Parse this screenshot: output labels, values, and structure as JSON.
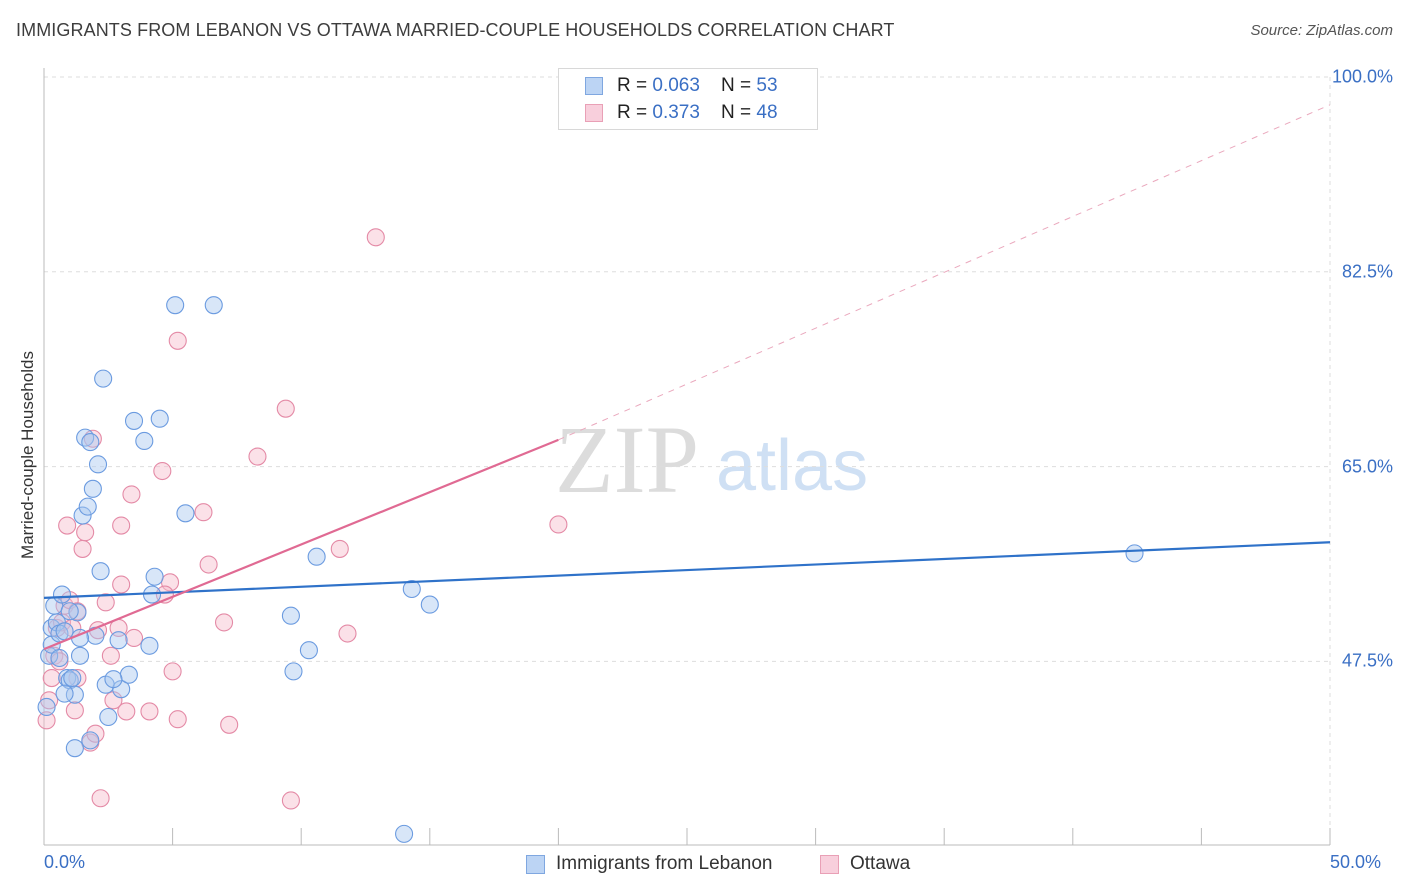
{
  "header": {
    "title": "IMMIGRANTS FROM LEBANON VS OTTAWA MARRIED-COUPLE HOUSEHOLDS CORRELATION CHART",
    "source": "Source: ZipAtlas.com"
  },
  "legend_top": {
    "rows": [
      {
        "r_label": "R = ",
        "r_value": "0.063",
        "n_label": "N = ",
        "n_value": "53"
      },
      {
        "r_label": "R = ",
        "r_value": "0.373",
        "n_label": "N = ",
        "n_value": "48"
      }
    ]
  },
  "watermark": {
    "zip": "ZIP",
    "atlas": "atlas"
  },
  "colors": {
    "blue_fill": "#a9c8f0",
    "blue_stroke": "#6b9be0",
    "blue_line": "#2f72c9",
    "pink_fill": "#f6bccd",
    "pink_stroke": "#e48aa6",
    "pink_line": "#e06a93",
    "tick_label": "#3a6fc4",
    "grid": "#dddddd"
  },
  "chart_data": {
    "type": "scatter",
    "title": "IMMIGRANTS FROM LEBANON VS OTTAWA MARRIED-COUPLE HOUSEHOLDS CORRELATION CHART",
    "xlabel": "",
    "ylabel": "Married-couple Households",
    "xlim": [
      0,
      50
    ],
    "ylim": [
      31,
      100
    ],
    "x_tick_labels": [
      {
        "value": 0,
        "label": "0.0%"
      },
      {
        "value": 50,
        "label": "50.0%"
      }
    ],
    "x_minor_ticks": [
      5,
      10,
      15,
      20,
      25,
      30,
      35,
      40,
      45,
      50
    ],
    "y_ticks": [
      {
        "value": 100,
        "label": "100.0%"
      },
      {
        "value": 82.5,
        "label": "82.5%"
      },
      {
        "value": 65,
        "label": "65.0%"
      },
      {
        "value": 47.5,
        "label": "47.5%"
      }
    ],
    "grid": true,
    "legend_position": "bottom",
    "series": [
      {
        "name": "Immigrants from Lebanon",
        "r": 0.063,
        "n": 53,
        "trend": {
          "x0": 0,
          "y0": 53.2,
          "x1": 50,
          "y1": 58.2,
          "style": "solid"
        },
        "points": [
          [
            0.1,
            43.4
          ],
          [
            0.2,
            48.0
          ],
          [
            0.3,
            49.0
          ],
          [
            0.3,
            50.5
          ],
          [
            0.4,
            52.5
          ],
          [
            0.5,
            51.0
          ],
          [
            0.6,
            50.0
          ],
          [
            0.7,
            53.5
          ],
          [
            0.8,
            50.2
          ],
          [
            0.9,
            46.0
          ],
          [
            1.0,
            45.8
          ],
          [
            1.1,
            46.0
          ],
          [
            1.2,
            44.5
          ],
          [
            1.3,
            51.9
          ],
          [
            1.4,
            48.0
          ],
          [
            1.5,
            60.6
          ],
          [
            1.6,
            67.6
          ],
          [
            1.7,
            61.4
          ],
          [
            1.8,
            67.2
          ],
          [
            1.9,
            63.0
          ],
          [
            2.0,
            49.8
          ],
          [
            2.1,
            65.2
          ],
          [
            2.2,
            55.6
          ],
          [
            2.3,
            72.9
          ],
          [
            2.4,
            45.4
          ],
          [
            1.2,
            39.7
          ],
          [
            1.8,
            40.4
          ],
          [
            2.5,
            42.5
          ],
          [
            2.9,
            49.4
          ],
          [
            3.0,
            45.0
          ],
          [
            3.3,
            46.3
          ],
          [
            3.5,
            69.1
          ],
          [
            3.9,
            67.3
          ],
          [
            4.1,
            48.9
          ],
          [
            4.2,
            53.5
          ],
          [
            4.3,
            55.1
          ],
          [
            4.5,
            69.3
          ],
          [
            5.1,
            79.5
          ],
          [
            5.5,
            60.8
          ],
          [
            6.6,
            79.5
          ],
          [
            9.6,
            51.6
          ],
          [
            9.7,
            46.6
          ],
          [
            10.3,
            48.5
          ],
          [
            10.6,
            56.9
          ],
          [
            14.0,
            32.0
          ],
          [
            14.3,
            54.0
          ],
          [
            15.0,
            52.6
          ],
          [
            42.4,
            57.2
          ],
          [
            0.6,
            47.8
          ],
          [
            1.0,
            52.0
          ],
          [
            1.4,
            49.6
          ],
          [
            0.8,
            44.6
          ],
          [
            2.7,
            45.9
          ]
        ]
      },
      {
        "name": "Ottawa",
        "r": 0.373,
        "n": 48,
        "trend": {
          "x0": 0,
          "y0": 48.6,
          "x1": 20,
          "y1": 67.4,
          "dash_x1": 50,
          "dash_y1": 97.5,
          "style": "solid-then-dashed"
        },
        "points": [
          [
            0.1,
            42.2
          ],
          [
            0.2,
            44.0
          ],
          [
            0.3,
            46.0
          ],
          [
            0.4,
            48.0
          ],
          [
            0.5,
            50.5
          ],
          [
            0.6,
            47.5
          ],
          [
            0.7,
            51.0
          ],
          [
            0.8,
            52.5
          ],
          [
            0.9,
            59.7
          ],
          [
            1.0,
            53.0
          ],
          [
            1.1,
            50.5
          ],
          [
            1.2,
            43.1
          ],
          [
            1.3,
            52.0
          ],
          [
            1.5,
            57.6
          ],
          [
            1.6,
            59.1
          ],
          [
            1.8,
            40.2
          ],
          [
            1.9,
            67.5
          ],
          [
            2.0,
            41.0
          ],
          [
            2.1,
            50.3
          ],
          [
            2.2,
            35.2
          ],
          [
            2.4,
            52.8
          ],
          [
            2.6,
            48.0
          ],
          [
            2.7,
            44.0
          ],
          [
            2.9,
            50.5
          ],
          [
            3.0,
            59.7
          ],
          [
            3.0,
            54.4
          ],
          [
            3.2,
            43.0
          ],
          [
            3.4,
            62.5
          ],
          [
            3.5,
            49.6
          ],
          [
            4.1,
            43.0
          ],
          [
            4.6,
            64.6
          ],
          [
            4.9,
            54.6
          ],
          [
            5.0,
            46.6
          ],
          [
            5.2,
            42.3
          ],
          [
            5.2,
            76.3
          ],
          [
            6.2,
            60.9
          ],
          [
            6.4,
            56.2
          ],
          [
            7.0,
            51.0
          ],
          [
            7.2,
            41.8
          ],
          [
            8.3,
            65.9
          ],
          [
            9.4,
            70.2
          ],
          [
            9.6,
            35.0
          ],
          [
            11.5,
            57.6
          ],
          [
            11.8,
            50.0
          ],
          [
            12.9,
            85.6
          ],
          [
            20.0,
            59.8
          ],
          [
            4.7,
            53.5
          ],
          [
            1.3,
            46.0
          ]
        ]
      }
    ]
  }
}
